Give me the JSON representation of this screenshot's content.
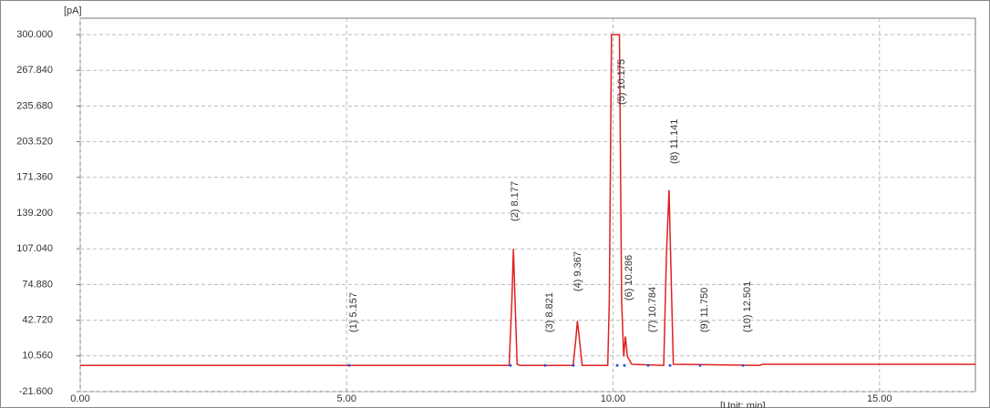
{
  "chart_data": {
    "type": "line",
    "y_label": "[pA]",
    "x_label": "[Unit: min]",
    "xlim": [
      0,
      16.8
    ],
    "ylim": [
      -21.6,
      300
    ],
    "xticks": [
      {
        "value": 0,
        "label": "0.00"
      },
      {
        "value": 5,
        "label": "5.00"
      },
      {
        "value": 10,
        "label": "10.00"
      },
      {
        "value": 15,
        "label": "15.00"
      }
    ],
    "yticks": [
      {
        "value": -21.6,
        "label": "-21.600"
      },
      {
        "value": 10.56,
        "label": "10.560"
      },
      {
        "value": 42.72,
        "label": "42.720"
      },
      {
        "value": 74.88,
        "label": "74.880"
      },
      {
        "value": 107.04,
        "label": "107.040"
      },
      {
        "value": 139.2,
        "label": "139.200"
      },
      {
        "value": 171.36,
        "label": "171.360"
      },
      {
        "value": 203.52,
        "label": "203.520"
      },
      {
        "value": 235.68,
        "label": "235.680"
      },
      {
        "value": 267.84,
        "label": "267.840"
      },
      {
        "value": 300,
        "label": "300.000"
      }
    ],
    "grid": true,
    "series": [
      {
        "color": "#e02020",
        "x": [
          0,
          8.05,
          8.1,
          8.13,
          8.16,
          8.2,
          8.25,
          9.25,
          9.3,
          9.33,
          9.37,
          9.42,
          9.9,
          9.93,
          9.97,
          10.12,
          10.16,
          10.2,
          10.23,
          10.27,
          10.35,
          10.95,
          11.0,
          11.05,
          11.08,
          11.13,
          12.75,
          12.8,
          16.8
        ],
        "values": [
          2,
          2,
          60,
          107,
          60,
          3,
          2,
          2,
          25,
          42,
          25,
          2,
          2,
          60,
          300,
          300,
          60,
          10,
          28,
          10,
          3,
          2,
          100,
          160,
          100,
          3,
          2,
          3,
          3
        ]
      }
    ],
    "annotations": [
      "(1) 5.157",
      "(2) 8.177",
      "(3) 8.821",
      "(4) 9.367",
      "(5) 10.175",
      "(6) 10.286",
      "(7) 10.784",
      "(8) 11.141",
      "(9) 11.750",
      "(10) 12.501"
    ]
  }
}
